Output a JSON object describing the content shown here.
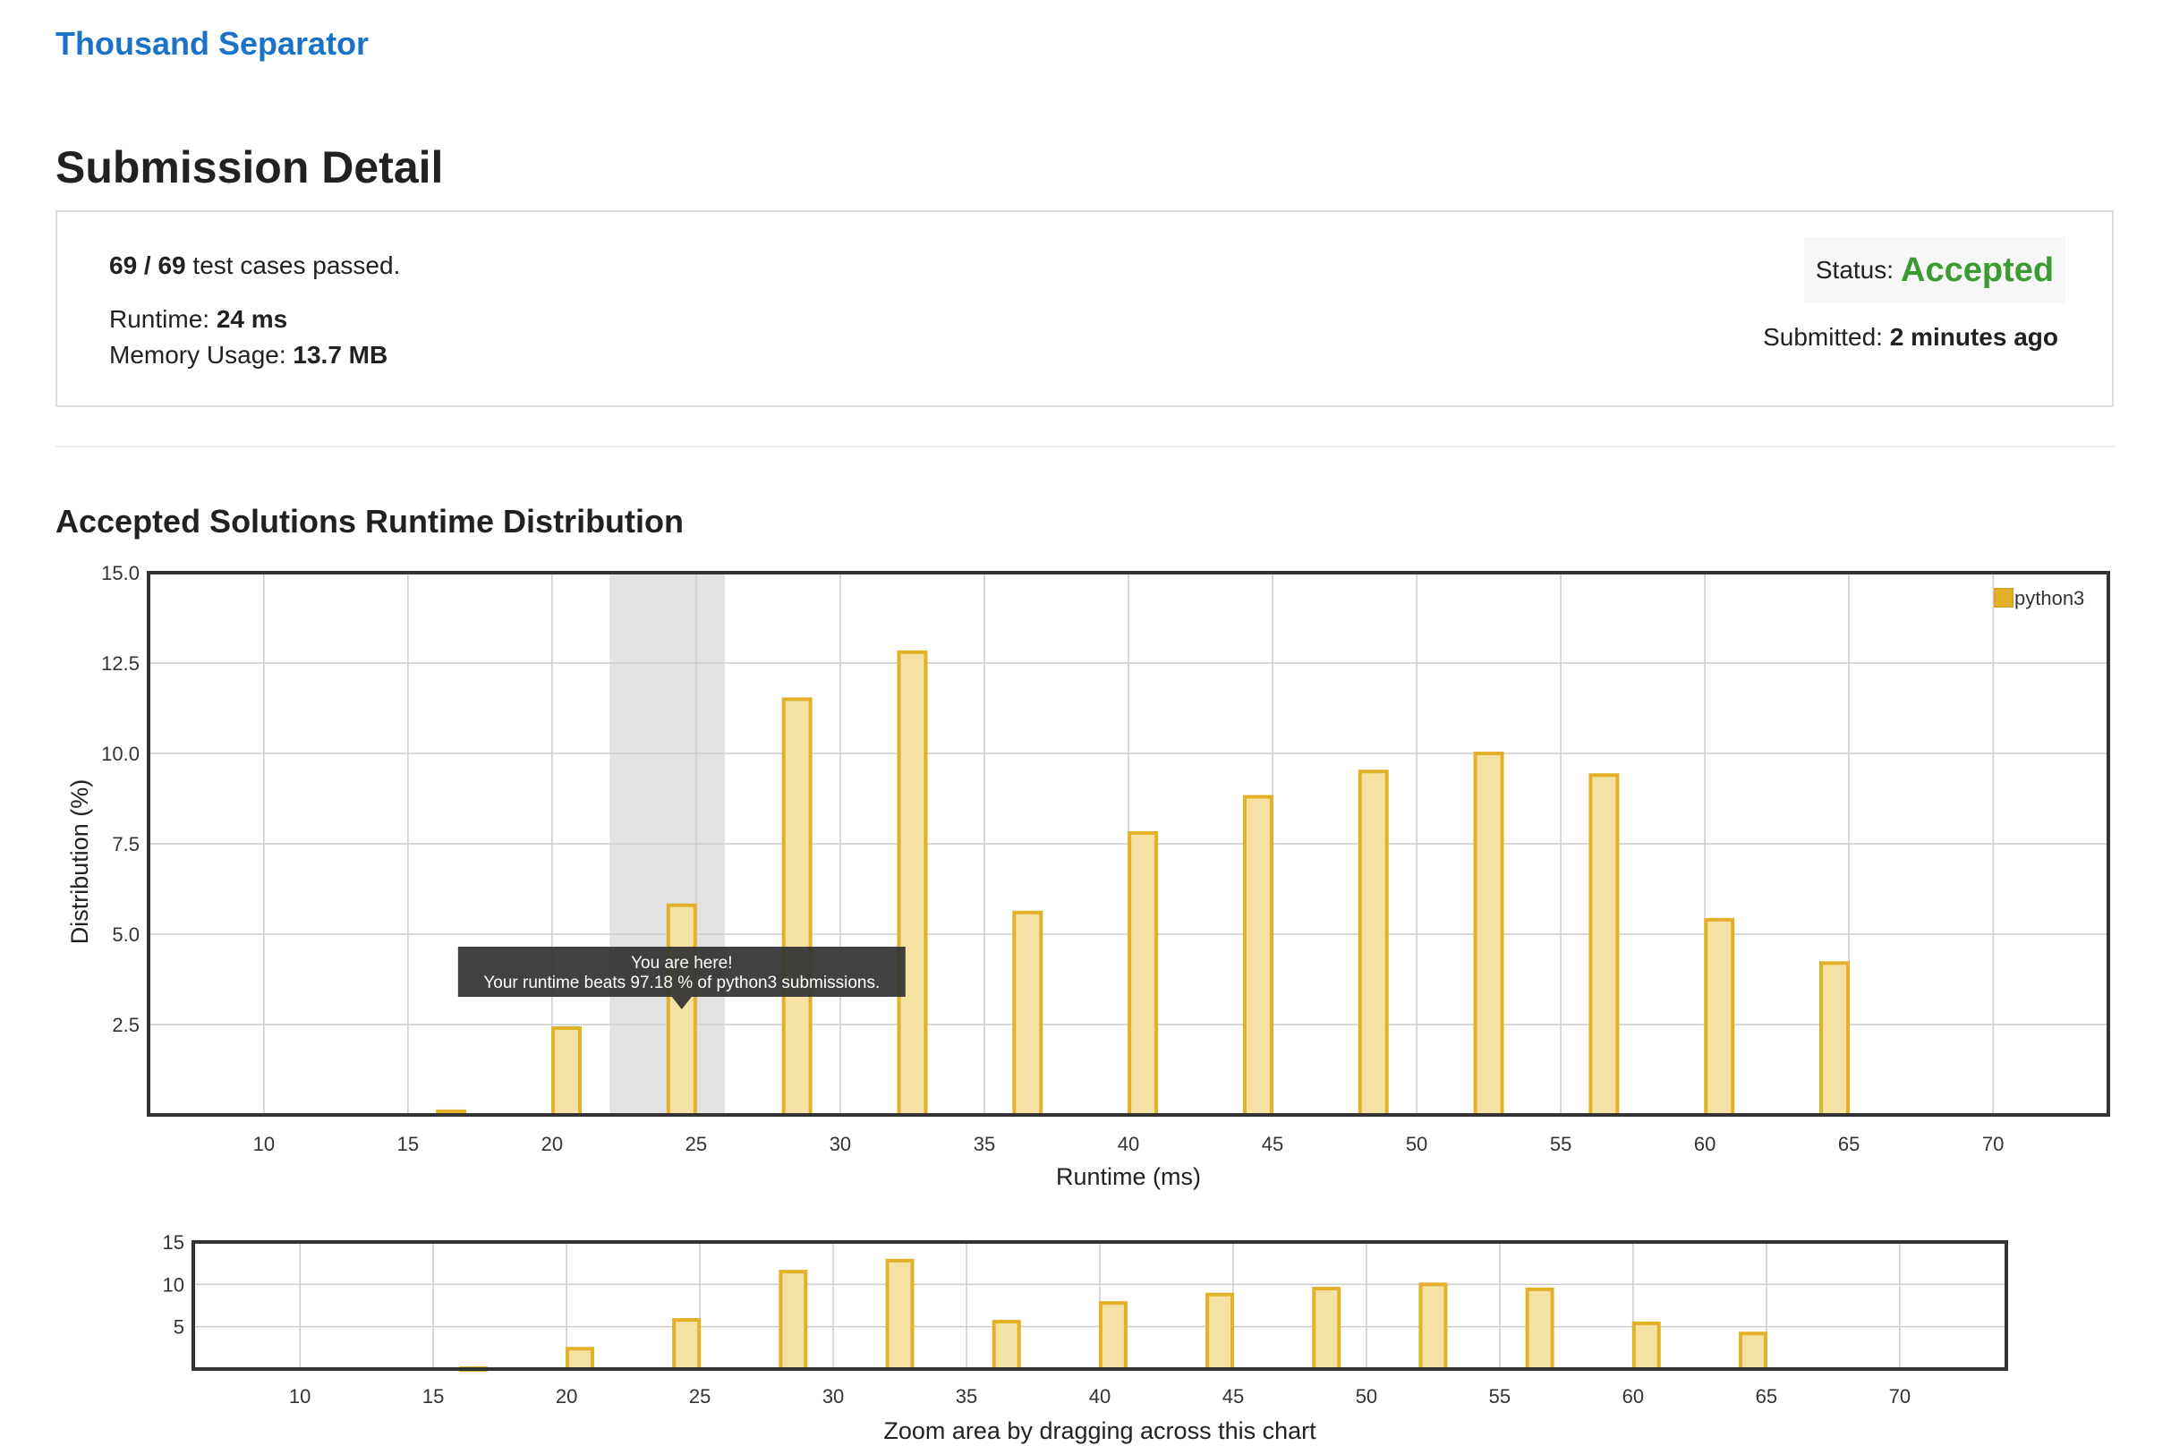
{
  "problem": {
    "title": "Thousand Separator"
  },
  "page": {
    "title": "Submission Detail"
  },
  "summary": {
    "passed": "69 / 69",
    "passed_suffix": " test cases passed.",
    "runtime_label": "Runtime: ",
    "runtime_value": "24 ms",
    "memory_label": "Memory Usage: ",
    "memory_value": "13.7 MB",
    "status_label": "Status: ",
    "status_value": "Accepted",
    "submitted_label": "Submitted: ",
    "submitted_value": "2 minutes ago"
  },
  "section": {
    "title": "Accepted Solutions Runtime Distribution"
  },
  "colors": {
    "bar_fill": "#f5e1a4",
    "bar_stroke": "#e3b02a",
    "highlight": "#e2e2e2",
    "tooltip_bg": "#333333",
    "accepted": "#3c9a32",
    "link": "#1a73c7"
  },
  "chart_data": {
    "type": "bar",
    "xlabel": "Runtime (ms)",
    "ylabel": "Distribution (%)",
    "xlim": [
      6,
      74
    ],
    "ylim": [
      0,
      15
    ],
    "xticks": [
      10,
      15,
      20,
      25,
      30,
      35,
      40,
      45,
      50,
      55,
      60,
      65,
      70
    ],
    "yticks": [
      2.5,
      5.0,
      7.5,
      10.0,
      12.5,
      15.0
    ],
    "ytick_labels": [
      "2.5",
      "5.0",
      "7.5",
      "10.0",
      "12.5",
      "15.0"
    ],
    "grid": true,
    "legend": {
      "position": "top-right",
      "label": "python3"
    },
    "highlight_range": [
      22,
      26
    ],
    "series": [
      {
        "name": "python3",
        "x": [
          16.5,
          20.5,
          24.5,
          28.5,
          32.5,
          36.5,
          40.5,
          44.5,
          48.5,
          52.5,
          56.5,
          60.5,
          64.5
        ],
        "values": [
          0.1,
          2.4,
          5.8,
          11.5,
          12.8,
          5.6,
          7.8,
          8.8,
          9.5,
          10.0,
          9.4,
          5.4,
          4.2
        ]
      }
    ],
    "tooltip": {
      "line1": "You are here!",
      "line2": "Your runtime beats 97.18 % of python3 submissions.",
      "x": 24.5
    },
    "navigator": {
      "xlim": [
        6,
        74
      ],
      "ylim": [
        0,
        15
      ],
      "yticks": [
        5,
        10,
        15
      ],
      "caption": "Zoom area by dragging across this chart"
    }
  }
}
